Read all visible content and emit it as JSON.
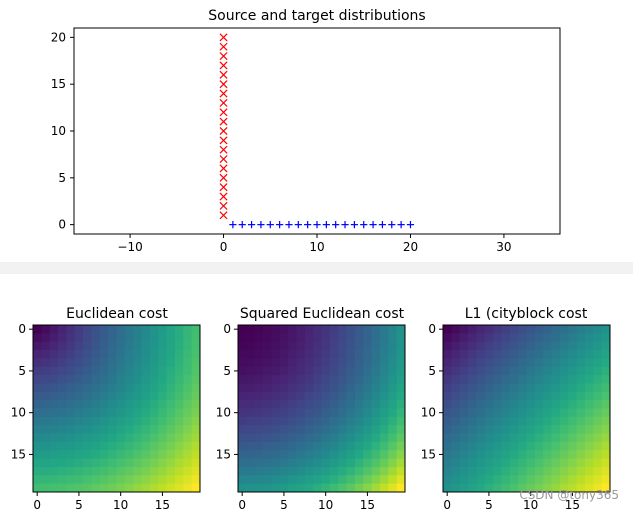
{
  "chart_data": [
    {
      "type": "scatter",
      "title": "Source and target distributions",
      "xlabel": "",
      "ylabel": "",
      "xlim": [
        -16,
        36
      ],
      "ylim": [
        -1,
        21
      ],
      "xticks": [
        -10,
        0,
        10,
        20,
        30
      ],
      "yticks": [
        0,
        5,
        10,
        15,
        20
      ],
      "series": [
        {
          "marker": "x",
          "color": "#ff0000",
          "x": [
            0,
            0,
            0,
            0,
            0,
            0,
            0,
            0,
            0,
            0,
            0,
            0,
            0,
            0,
            0,
            0,
            0,
            0,
            0,
            0
          ],
          "y": [
            1,
            2,
            3,
            4,
            5,
            6,
            7,
            8,
            9,
            10,
            11,
            12,
            13,
            14,
            15,
            16,
            17,
            18,
            19,
            20
          ]
        },
        {
          "marker": "+",
          "color": "#0000ff",
          "x": [
            1,
            2,
            3,
            4,
            5,
            6,
            7,
            8,
            9,
            10,
            11,
            12,
            13,
            14,
            15,
            16,
            17,
            18,
            19,
            20
          ],
          "y": [
            0,
            0,
            0,
            0,
            0,
            0,
            0,
            0,
            0,
            0,
            0,
            0,
            0,
            0,
            0,
            0,
            0,
            0,
            0,
            0
          ]
        }
      ],
      "grid": false
    },
    {
      "type": "heatmap",
      "title": "Euclidean cost",
      "size": 20,
      "cost": "euclidean",
      "colormap": "viridis",
      "xticks": [
        0,
        5,
        10,
        15
      ],
      "yticks": [
        0,
        5,
        10,
        15
      ]
    },
    {
      "type": "heatmap",
      "title": "Squared Euclidean cost",
      "size": 20,
      "cost": "sqeuclidean",
      "colormap": "viridis",
      "xticks": [
        0,
        5,
        10,
        15
      ],
      "yticks": [
        0,
        5,
        10,
        15
      ]
    },
    {
      "type": "heatmap",
      "title": "L1 (cityblock cost",
      "size": 20,
      "cost": "cityblock",
      "colormap": "viridis",
      "xticks": [
        0,
        5,
        10,
        15
      ],
      "yticks": [
        0,
        5,
        10,
        15
      ]
    }
  ],
  "watermark": "CSDN @tony365"
}
